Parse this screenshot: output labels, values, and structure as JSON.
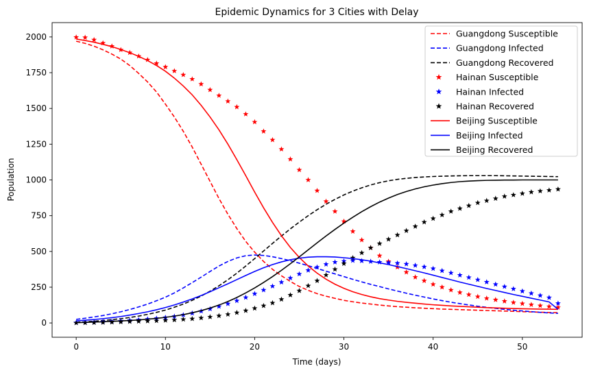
{
  "chart_data": {
    "type": "line",
    "title": "Epidemic Dynamics for 3 Cities with Delay",
    "xlabel": "Time (days)",
    "ylabel": "Population",
    "xlim": [
      -2.7,
      56.7
    ],
    "ylim": [
      -100,
      2100
    ],
    "xticks": [
      0,
      10,
      20,
      30,
      40,
      50
    ],
    "yticks": [
      0,
      250,
      500,
      750,
      1000,
      1250,
      1500,
      1750,
      2000
    ],
    "grid": false,
    "legend_position": "top-right",
    "x": [
      0,
      1,
      2,
      3,
      4,
      5,
      6,
      7,
      8,
      9,
      10,
      11,
      12,
      13,
      14,
      15,
      16,
      17,
      18,
      19,
      20,
      21,
      22,
      23,
      24,
      25,
      26,
      27,
      28,
      29,
      30,
      31,
      32,
      33,
      34,
      35,
      36,
      37,
      38,
      39,
      40,
      41,
      42,
      43,
      44,
      45,
      46,
      47,
      48,
      49,
      50,
      51,
      52,
      53,
      54
    ],
    "series": [
      {
        "name": "Guangdong Susceptible",
        "color": "#ff0000",
        "style": "dashed",
        "values": [
          1970,
          1955,
          1935,
          1910,
          1880,
          1845,
          1800,
          1745,
          1685,
          1615,
          1530,
          1440,
          1340,
          1230,
          1110,
          990,
          870,
          760,
          660,
          570,
          495,
          430,
          375,
          330,
          290,
          255,
          228,
          205,
          187,
          172,
          158,
          148,
          139,
          132,
          125,
          119,
          114,
          110,
          106,
          103,
          100,
          97,
          95,
          93,
          91,
          89,
          87,
          85,
          83,
          81,
          79,
          77,
          75,
          73,
          72
        ]
      },
      {
        "name": "Guangdong Infected",
        "color": "#0000ff",
        "style": "dashed",
        "values": [
          25,
          33,
          42,
          52,
          64,
          78,
          94,
          112,
          132,
          155,
          180,
          210,
          245,
          282,
          320,
          360,
          398,
          430,
          455,
          470,
          475,
          472,
          463,
          450,
          435,
          418,
          400,
          381,
          362,
          343,
          324,
          305,
          287,
          270,
          254,
          238,
          223,
          208,
          194,
          181,
          168,
          156,
          145,
          135,
          126,
          117,
          109,
          102,
          95,
          89,
          84,
          79,
          74,
          70,
          67
        ]
      },
      {
        "name": "Guangdong Recovered",
        "color": "#000000",
        "style": "dashed",
        "values": [
          5,
          8,
          12,
          17,
          23,
          30,
          38,
          48,
          60,
          74,
          90,
          110,
          132,
          158,
          188,
          222,
          260,
          302,
          348,
          398,
          450,
          503,
          556,
          608,
          658,
          705,
          750,
          792,
          830,
          864,
          895,
          922,
          945,
          965,
          981,
          994,
          1004,
          1011,
          1017,
          1021,
          1024,
          1026,
          1028,
          1029,
          1030,
          1030,
          1030,
          1030,
          1029,
          1028,
          1027,
          1026,
          1025,
          1024,
          1023
        ]
      },
      {
        "name": "Hainan Susceptible",
        "color": "#ff0000",
        "style": "star",
        "values": [
          1998,
          1996,
          1980,
          1957,
          1935,
          1910,
          1890,
          1865,
          1840,
          1815,
          1790,
          1762,
          1735,
          1705,
          1670,
          1630,
          1590,
          1550,
          1510,
          1460,
          1405,
          1340,
          1280,
          1215,
          1145,
          1070,
          1000,
          925,
          850,
          780,
          710,
          640,
          580,
          525,
          470,
          430,
          390,
          355,
          320,
          295,
          270,
          250,
          230,
          213,
          198,
          184,
          172,
          162,
          152,
          143,
          135,
          128,
          121,
          115,
          109
        ]
      },
      {
        "name": "Hainan Infected",
        "color": "#0000ff",
        "style": "star",
        "values": [
          2,
          4,
          6,
          9,
          11,
          14,
          18,
          22,
          27,
          32,
          38,
          46,
          56,
          68,
          82,
          98,
          115,
          134,
          155,
          178,
          204,
          230,
          257,
          285,
          314,
          342,
          368,
          390,
          410,
          425,
          432,
          436,
          434,
          430,
          425,
          422,
          418,
          412,
          402,
          392,
          380,
          365,
          350,
          334,
          318,
          302,
          286,
          270,
          254,
          238,
          222,
          207,
          192,
          177,
          137
        ]
      },
      {
        "name": "Hainan Recovered",
        "color": "#000000",
        "style": "star",
        "values": [
          0,
          1,
          2,
          3,
          5,
          7,
          9,
          11,
          13,
          15,
          18,
          21,
          25,
          29,
          35,
          42,
          50,
          60,
          72,
          86,
          102,
          120,
          140,
          165,
          195,
          225,
          260,
          295,
          335,
          375,
          415,
          455,
          490,
          525,
          555,
          585,
          615,
          645,
          675,
          705,
          730,
          755,
          780,
          800,
          820,
          840,
          855,
          870,
          885,
          895,
          905,
          915,
          922,
          928,
          935
        ]
      },
      {
        "name": "Beijing Susceptible",
        "color": "#ff0000",
        "style": "solid",
        "values": [
          1985,
          1975,
          1963,
          1948,
          1932,
          1912,
          1890,
          1864,
          1835,
          1800,
          1760,
          1712,
          1657,
          1595,
          1522,
          1440,
          1350,
          1250,
          1142,
          1030,
          915,
          805,
          703,
          610,
          528,
          458,
          398,
          348,
          306,
          271,
          242,
          218,
          199,
          183,
          170,
          160,
          151,
          144,
          138,
          132,
          127,
          123,
          119,
          116,
          113,
          110,
          107,
          105,
          103,
          101,
          99,
          98,
          97,
          96,
          95
        ]
      },
      {
        "name": "Beijing Infected",
        "color": "#0000ff",
        "style": "solid",
        "values": [
          15,
          19,
          24,
          30,
          37,
          45,
          55,
          66,
          78,
          92,
          108,
          126,
          146,
          168,
          192,
          218,
          246,
          274,
          303,
          332,
          360,
          386,
          408,
          427,
          442,
          453,
          460,
          463,
          463,
          461,
          456,
          450,
          442,
          432,
          420,
          408,
          394,
          380,
          365,
          350,
          334,
          318,
          302,
          286,
          271,
          256,
          241,
          227,
          213,
          199,
          186,
          173,
          160,
          147,
          95
        ]
      },
      {
        "name": "Beijing Recovered",
        "color": "#000000",
        "style": "solid",
        "values": [
          2,
          4,
          6,
          8,
          11,
          14,
          17,
          21,
          26,
          32,
          39,
          48,
          58,
          71,
          86,
          104,
          125,
          150,
          178,
          210,
          245,
          283,
          324,
          368,
          414,
          462,
          511,
          560,
          608,
          654,
          698,
          739,
          778,
          813,
          845,
          873,
          898,
          919,
          937,
          952,
          964,
          974,
          982,
          988,
          992,
          995,
          997,
          998,
          999,
          999,
          1000,
          1000,
          1000,
          1000,
          1000
        ]
      }
    ]
  }
}
